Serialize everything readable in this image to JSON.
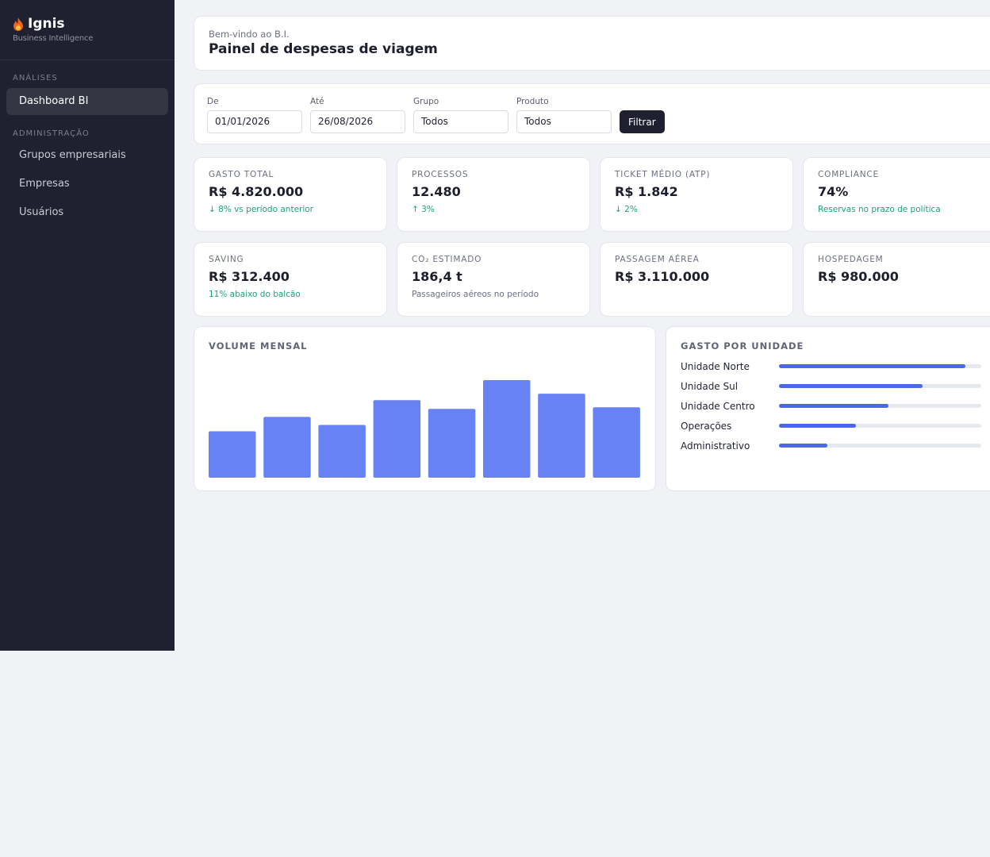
{
  "brand": {
    "name": "Ignis",
    "subtitle": "Business Intelligence",
    "icon": "flame-icon"
  },
  "sidebar": {
    "section_analises": "ANÁLISES",
    "dashboard": "Dashboard BI",
    "section_admin": "ADMINISTRAÇÃO",
    "admin_items": [
      "Grupos empresariais",
      "Empresas",
      "Usuários"
    ]
  },
  "header": {
    "welcome": "Bem-vindo ao B.I.",
    "title": "Painel de despesas de viagem"
  },
  "filters": {
    "from": {
      "label": "De",
      "value": "01/01/2026"
    },
    "to": {
      "label": "Até",
      "value": "26/08/2026"
    },
    "group": {
      "label": "Grupo",
      "value": "Todos"
    },
    "product": {
      "label": "Produto",
      "value": "Todos"
    },
    "button": "Filtrar"
  },
  "kpis": [
    {
      "label": "GASTO TOTAL",
      "value": "R$ 4.820.000",
      "note": "↓ 8% vs período anterior",
      "note_color": "#1aa37a"
    },
    {
      "label": "PROCESSOS",
      "value": "12.480",
      "note": "↑ 3%",
      "note_color": "#1aa37a"
    },
    {
      "label": "TICKET MÉDIO (ATP)",
      "value": "R$ 1.842",
      "note": "↓ 2%",
      "note_color": "#1aa37a"
    },
    {
      "label": "COMPLIANCE",
      "value": "74%",
      "note": "Reservas no prazo de política",
      "note_color": "#1aa37a"
    },
    {
      "label": "SAVING",
      "value": "R$ 312.400",
      "note": "11% abaixo do balcão",
      "note_color": "#1aa37a"
    },
    {
      "label": "CO₂ ESTIMADO",
      "value": "186,4 t",
      "note": "Passageiros aéreos no período",
      "note_color": "#6b7080"
    },
    {
      "label": "PASSAGEM AÉREA",
      "value": "R$ 3.110.000",
      "note": "",
      "note_color": "#1aa37a"
    },
    {
      "label": "HOSPEDAGEM",
      "value": "R$ 980.000",
      "note": "",
      "note_color": "#1aa37a"
    }
  ],
  "volume_title": "VOLUME MENSAL",
  "chart_data": {
    "type": "bar",
    "title": "VOLUME MENSAL",
    "categories": [
      "",
      "",
      "",
      "",
      "",
      "",
      "",
      ""
    ],
    "values": [
      58,
      76,
      66,
      97,
      86,
      122,
      105,
      88
    ],
    "ylim": [
      0,
      122
    ],
    "grid": false,
    "color": "#6882f4"
  },
  "units": {
    "title": "GASTO POR UNIDADE",
    "items": [
      {
        "label": "Unidade Norte",
        "share": 0.92
      },
      {
        "label": "Unidade Sul",
        "share": 0.71
      },
      {
        "label": "Unidade Centro",
        "share": 0.54
      },
      {
        "label": "Operações",
        "share": 0.38
      },
      {
        "label": "Administrativo",
        "share": 0.24
      }
    ],
    "bar_color": "#4a68e8",
    "track_color": "#e6e9ee"
  }
}
